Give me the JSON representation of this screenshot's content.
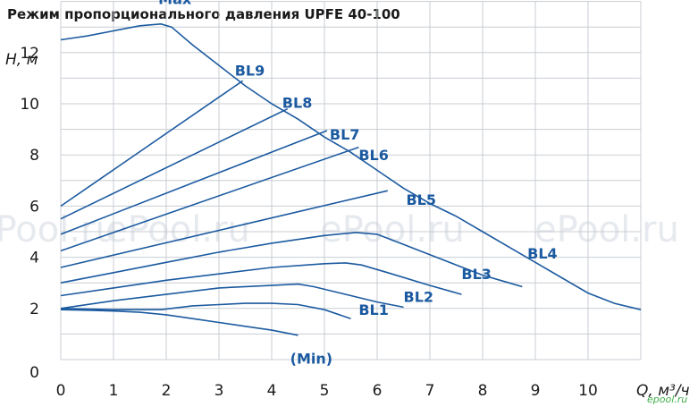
{
  "title": "Режим пропорционального давления UPFE 40-100",
  "watermark": "ePool.ru",
  "brand_mark": "epool.ru",
  "chart_data": {
    "type": "line",
    "ylabel": "H, м",
    "xlabel": "Q, м³/ч",
    "xlim": [
      0,
      11
    ],
    "ylim": [
      0,
      14
    ],
    "x_ticks": [
      "0",
      "1",
      "2",
      "3",
      "4",
      "5",
      "6",
      "7",
      "8",
      "9",
      "10"
    ],
    "y_ticks": [
      "0",
      "2",
      "4",
      "6",
      "8",
      "10",
      "12"
    ],
    "grid": true,
    "color": "#1c5aa0",
    "series": [
      {
        "name": "Max",
        "label_at": [
          1.85,
          13.9
        ],
        "points": [
          [
            0,
            12.5
          ],
          [
            0.5,
            12.65
          ],
          [
            1.0,
            12.85
          ],
          [
            1.5,
            13.05
          ],
          [
            1.9,
            13.12
          ],
          [
            2.1,
            13.0
          ],
          [
            2.5,
            12.3
          ],
          [
            3.0,
            11.5
          ],
          [
            3.5,
            10.7
          ],
          [
            4.0,
            10.0
          ],
          [
            4.5,
            9.4
          ],
          [
            5.0,
            8.7
          ],
          [
            5.5,
            8.1
          ],
          [
            6.0,
            7.4
          ],
          [
            6.5,
            6.7
          ],
          [
            7.0,
            6.1
          ],
          [
            7.5,
            5.6
          ],
          [
            8.0,
            5.0
          ],
          [
            8.5,
            4.4
          ],
          [
            9.0,
            3.8
          ],
          [
            9.5,
            3.2
          ],
          [
            10.0,
            2.6
          ],
          [
            10.5,
            2.2
          ],
          [
            11.0,
            1.95
          ]
        ]
      },
      {
        "name": "BL9",
        "label_at": [
          3.3,
          11.1
        ],
        "points": [
          [
            0,
            6.0
          ],
          [
            3.45,
            10.9
          ]
        ]
      },
      {
        "name": "BL8",
        "label_at": [
          4.2,
          9.85
        ],
        "points": [
          [
            0,
            5.5
          ],
          [
            4.3,
            9.8
          ]
        ]
      },
      {
        "name": "BL7",
        "label_at": [
          5.1,
          8.6
        ],
        "points": [
          [
            0,
            4.9
          ],
          [
            5.05,
            8.95
          ]
        ]
      },
      {
        "name": "BL6",
        "label_at": [
          5.65,
          7.8
        ],
        "points": [
          [
            0,
            4.25
          ],
          [
            5.65,
            8.3
          ]
        ]
      },
      {
        "name": "BL5",
        "label_at": [
          6.55,
          6.05
        ],
        "points": [
          [
            0,
            3.6
          ],
          [
            6.2,
            6.6
          ]
        ]
      },
      {
        "name": "BL4",
        "label_at": [
          8.85,
          3.95
        ],
        "points": [
          [
            0,
            3.0
          ],
          [
            1.0,
            3.4
          ],
          [
            2.0,
            3.8
          ],
          [
            3.0,
            4.2
          ],
          [
            4.0,
            4.55
          ],
          [
            5.0,
            4.85
          ],
          [
            5.6,
            4.97
          ],
          [
            6.0,
            4.9
          ],
          [
            6.5,
            4.5
          ],
          [
            7.0,
            4.1
          ],
          [
            7.5,
            3.7
          ],
          [
            8.0,
            3.3
          ],
          [
            8.5,
            3.0
          ],
          [
            8.75,
            2.85
          ]
        ]
      },
      {
        "name": "BL3",
        "label_at": [
          7.6,
          3.15
        ],
        "points": [
          [
            0,
            2.5
          ],
          [
            1.0,
            2.8
          ],
          [
            2.0,
            3.1
          ],
          [
            3.0,
            3.35
          ],
          [
            4.0,
            3.6
          ],
          [
            5.0,
            3.75
          ],
          [
            5.4,
            3.78
          ],
          [
            5.7,
            3.7
          ],
          [
            6.2,
            3.4
          ],
          [
            7.0,
            2.9
          ],
          [
            7.6,
            2.55
          ]
        ]
      },
      {
        "name": "BL2",
        "label_at": [
          6.5,
          2.25
        ],
        "points": [
          [
            0,
            2.0
          ],
          [
            1.0,
            2.3
          ],
          [
            2.0,
            2.55
          ],
          [
            3.0,
            2.8
          ],
          [
            4.0,
            2.9
          ],
          [
            4.5,
            2.95
          ],
          [
            4.8,
            2.85
          ],
          [
            5.3,
            2.6
          ],
          [
            6.0,
            2.25
          ],
          [
            6.5,
            2.05
          ]
        ]
      },
      {
        "name": "BL1",
        "label_at": [
          5.65,
          1.75
        ],
        "points": [
          [
            0,
            2.0
          ],
          [
            1.0,
            1.95
          ],
          [
            1.9,
            1.95
          ],
          [
            2.5,
            2.1
          ],
          [
            3.0,
            2.15
          ],
          [
            3.5,
            2.2
          ],
          [
            4.0,
            2.2
          ],
          [
            4.5,
            2.15
          ],
          [
            5.0,
            1.95
          ],
          [
            5.5,
            1.6
          ]
        ]
      },
      {
        "name": "(Min)",
        "label_at": [
          4.35,
          -0.15
        ],
        "points": [
          [
            0,
            1.95
          ],
          [
            0.5,
            1.93
          ],
          [
            1.0,
            1.9
          ],
          [
            1.5,
            1.85
          ],
          [
            2.0,
            1.75
          ],
          [
            2.5,
            1.6
          ],
          [
            3.0,
            1.45
          ],
          [
            3.5,
            1.3
          ],
          [
            4.0,
            1.15
          ],
          [
            4.5,
            0.95
          ]
        ]
      }
    ]
  }
}
